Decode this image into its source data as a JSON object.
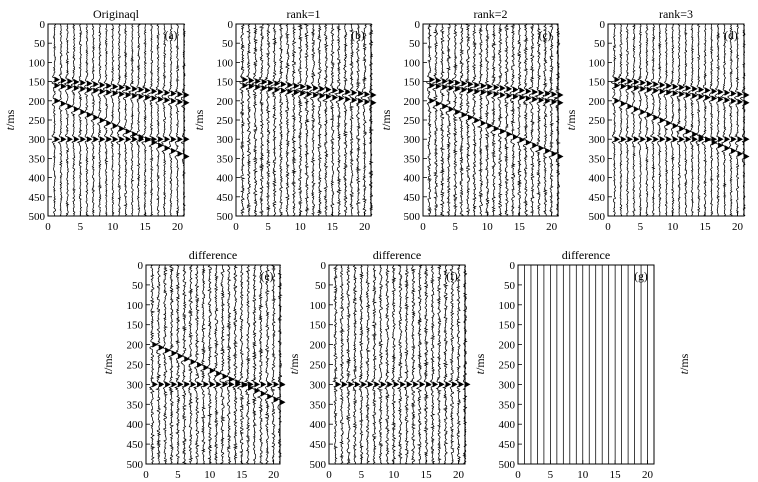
{
  "figure": {
    "y_axis_label_var": "t",
    "y_axis_label_unit": "/ms",
    "extra_axis_label_var": "t",
    "extra_axis_label_unit": "/ms"
  },
  "chart_data": [
    {
      "id": "a",
      "type": "seismic-wiggle",
      "title": "Originaql",
      "panel_label": "(a)",
      "xlim": [
        0,
        21
      ],
      "ylim": [
        0,
        500
      ],
      "xticks": [
        0,
        5,
        10,
        15,
        20
      ],
      "yticks": [
        0,
        50,
        100,
        150,
        200,
        250,
        300,
        350,
        400,
        450,
        500
      ],
      "trace_count": 21,
      "noise_level": 0.08,
      "events": [
        {
          "name": "flat-ish event 1",
          "t_start_ms": 145,
          "t_end_ms": 185
        },
        {
          "name": "flat-ish event 2",
          "t_start_ms": 160,
          "t_end_ms": 205
        },
        {
          "name": "dipping event",
          "t_start_ms": 200,
          "t_end_ms": 345
        },
        {
          "name": "horizontal event",
          "t_start_ms": 300,
          "t_end_ms": 300
        }
      ]
    },
    {
      "id": "b",
      "type": "seismic-wiggle",
      "title": "rank=1",
      "panel_label": "(b)",
      "xlim": [
        0,
        21
      ],
      "ylim": [
        0,
        500
      ],
      "xticks": [
        0,
        5,
        10,
        15,
        20
      ],
      "yticks": [
        0,
        50,
        100,
        150,
        200,
        250,
        300,
        350,
        400,
        450,
        500
      ],
      "trace_count": 21,
      "noise_level": 0.12,
      "events": [
        {
          "name": "flat-ish event 1",
          "t_start_ms": 145,
          "t_end_ms": 185
        },
        {
          "name": "flat-ish event 2",
          "t_start_ms": 160,
          "t_end_ms": 205
        }
      ]
    },
    {
      "id": "c",
      "type": "seismic-wiggle",
      "title": "rank=2",
      "panel_label": "(c)",
      "xlim": [
        0,
        21
      ],
      "ylim": [
        0,
        500
      ],
      "xticks": [
        0,
        5,
        10,
        15,
        20
      ],
      "yticks": [
        0,
        50,
        100,
        150,
        200,
        250,
        300,
        350,
        400,
        450,
        500
      ],
      "trace_count": 21,
      "noise_level": 0.12,
      "events": [
        {
          "name": "flat-ish event 1",
          "t_start_ms": 145,
          "t_end_ms": 185
        },
        {
          "name": "flat-ish event 2",
          "t_start_ms": 160,
          "t_end_ms": 205
        },
        {
          "name": "dipping event",
          "t_start_ms": 200,
          "t_end_ms": 345
        }
      ]
    },
    {
      "id": "d",
      "type": "seismic-wiggle",
      "title": "rank=3",
      "panel_label": "(d)",
      "xlim": [
        0,
        21
      ],
      "ylim": [
        0,
        500
      ],
      "xticks": [
        0,
        5,
        10,
        15,
        20
      ],
      "yticks": [
        0,
        50,
        100,
        150,
        200,
        250,
        300,
        350,
        400,
        450,
        500
      ],
      "trace_count": 21,
      "noise_level": 0.08,
      "events": [
        {
          "name": "flat-ish event 1",
          "t_start_ms": 145,
          "t_end_ms": 185
        },
        {
          "name": "flat-ish event 2",
          "t_start_ms": 160,
          "t_end_ms": 205
        },
        {
          "name": "dipping event",
          "t_start_ms": 200,
          "t_end_ms": 345
        },
        {
          "name": "horizontal event",
          "t_start_ms": 300,
          "t_end_ms": 300
        }
      ]
    },
    {
      "id": "e",
      "type": "seismic-wiggle",
      "title": "difference",
      "panel_label": "(e)",
      "xlim": [
        0,
        21
      ],
      "ylim": [
        0,
        500
      ],
      "xticks": [
        0,
        5,
        10,
        15,
        20
      ],
      "yticks": [
        0,
        50,
        100,
        150,
        200,
        250,
        300,
        350,
        400,
        450,
        500
      ],
      "trace_count": 21,
      "noise_level": 0.12,
      "events": [
        {
          "name": "dipping event",
          "t_start_ms": 200,
          "t_end_ms": 345
        },
        {
          "name": "horizontal event",
          "t_start_ms": 300,
          "t_end_ms": 300
        }
      ]
    },
    {
      "id": "f",
      "type": "seismic-wiggle",
      "title": "difference",
      "panel_label": "(f)",
      "xlim": [
        0,
        21
      ],
      "ylim": [
        0,
        500
      ],
      "xticks": [
        0,
        5,
        10,
        15,
        20
      ],
      "yticks": [
        0,
        50,
        100,
        150,
        200,
        250,
        300,
        350,
        400,
        450,
        500
      ],
      "trace_count": 21,
      "noise_level": 0.12,
      "events": [
        {
          "name": "horizontal event",
          "t_start_ms": 300,
          "t_end_ms": 300
        }
      ]
    },
    {
      "id": "g",
      "type": "seismic-wiggle",
      "title": "difference",
      "panel_label": "(g)",
      "xlim": [
        0,
        21
      ],
      "ylim": [
        0,
        500
      ],
      "xticks": [
        0,
        5,
        10,
        15,
        20
      ],
      "yticks": [
        0,
        50,
        100,
        150,
        200,
        250,
        300,
        350,
        400,
        450,
        500
      ],
      "trace_count": 21,
      "noise_level": 0.0,
      "events": []
    }
  ]
}
